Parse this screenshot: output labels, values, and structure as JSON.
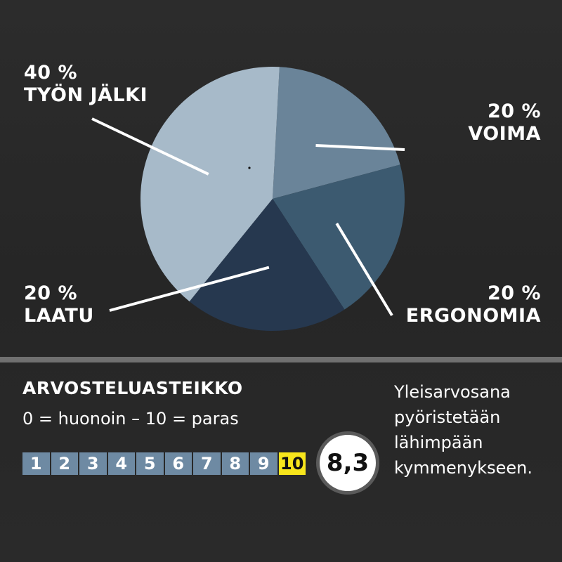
{
  "chart_data": {
    "type": "pie",
    "title": "",
    "slices": [
      {
        "name": "TYÖN JÄLKI",
        "value": 40,
        "label_pct": "40 %",
        "color": "#a7bac9"
      },
      {
        "name": "VOIMA",
        "value": 20,
        "label_pct": "20 %",
        "color": "#6a8499"
      },
      {
        "name": "ERGONOMIA",
        "value": 20,
        "label_pct": "20 %",
        "color": "#3c5a70"
      },
      {
        "name": "LAATU",
        "value": 20,
        "label_pct": "20 %",
        "color": "#26384f"
      }
    ]
  },
  "scale": {
    "title": "ARVOSTELUASTEIKKO",
    "range_text": "0 = huonoin – 10 = paras",
    "numbers": [
      "1",
      "2",
      "3",
      "4",
      "5",
      "6",
      "7",
      "8",
      "9",
      "10"
    ],
    "active_value": "10",
    "score": "8,3",
    "note": "Yleisarvosana\npyöristetään\nlähimpään\nkymmenykseen."
  },
  "colors": {
    "background": "#2a2a2a",
    "scale_cell": "#6e8aa3",
    "scale_active": "#f7e51c",
    "leader_line": "#ffffff"
  }
}
